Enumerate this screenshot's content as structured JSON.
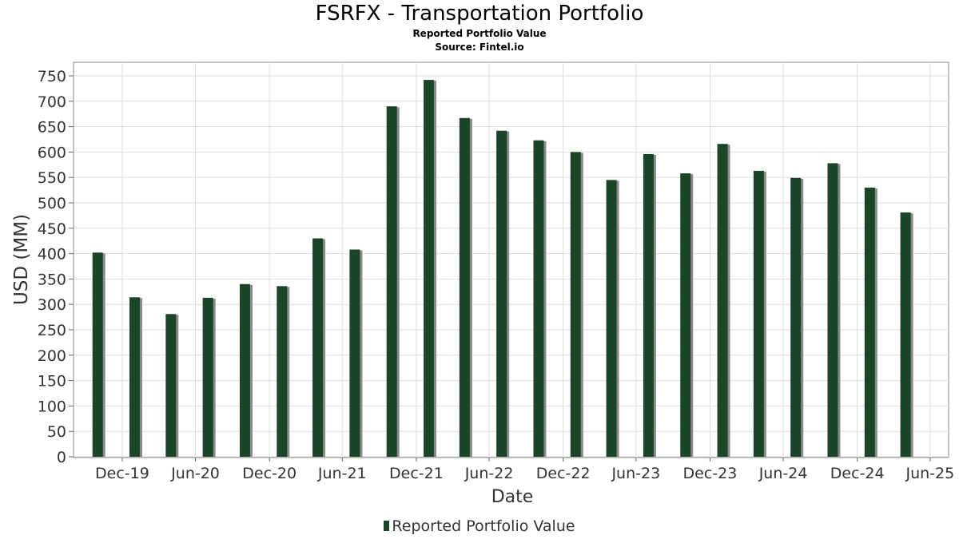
{
  "chart_data": {
    "type": "bar",
    "title": "FSRFX - Transportation Portfolio",
    "subtitle": "Reported Portfolio Value",
    "source": "Source: Fintel.io",
    "xlabel": "Date",
    "ylabel": "USD (MM)",
    "ylim": [
      0,
      775
    ],
    "yticks": [
      0,
      50,
      100,
      150,
      200,
      250,
      300,
      350,
      400,
      450,
      500,
      550,
      600,
      650,
      700,
      750
    ],
    "xtick_labels": [
      "Dec-19",
      "Jun-20",
      "Dec-20",
      "Jun-21",
      "Dec-21",
      "Jun-22",
      "Dec-22",
      "Jun-23",
      "Dec-23",
      "Jun-24",
      "Dec-24",
      "Jun-25"
    ],
    "x_range": [
      "2019-09-01",
      "2025-08-15"
    ],
    "grid": true,
    "legend_position": "bottom-center",
    "series": [
      {
        "name": "Reported Portfolio Value",
        "color": "#1a4527",
        "points": [
          {
            "date": "2019-10-31",
            "value": 402
          },
          {
            "date": "2020-01-31",
            "value": 314
          },
          {
            "date": "2020-04-30",
            "value": 281
          },
          {
            "date": "2020-07-31",
            "value": 313
          },
          {
            "date": "2020-10-31",
            "value": 340
          },
          {
            "date": "2021-01-31",
            "value": 336
          },
          {
            "date": "2021-04-30",
            "value": 430
          },
          {
            "date": "2021-07-31",
            "value": 408
          },
          {
            "date": "2021-10-31",
            "value": 690
          },
          {
            "date": "2022-01-31",
            "value": 742
          },
          {
            "date": "2022-04-30",
            "value": 667
          },
          {
            "date": "2022-07-31",
            "value": 642
          },
          {
            "date": "2022-10-31",
            "value": 623
          },
          {
            "date": "2023-01-31",
            "value": 600
          },
          {
            "date": "2023-04-30",
            "value": 545
          },
          {
            "date": "2023-07-31",
            "value": 596
          },
          {
            "date": "2023-10-31",
            "value": 558
          },
          {
            "date": "2024-01-31",
            "value": 616
          },
          {
            "date": "2024-04-30",
            "value": 563
          },
          {
            "date": "2024-07-31",
            "value": 549
          },
          {
            "date": "2024-10-31",
            "value": 578
          },
          {
            "date": "2025-01-31",
            "value": 530
          },
          {
            "date": "2025-04-30",
            "value": 481
          }
        ]
      }
    ]
  },
  "colors": {
    "bar": "#1a4527",
    "bar_shadow": "#8a8a8a",
    "grid": "#dddddd",
    "plot_border": "#888888",
    "text": "#333333"
  }
}
